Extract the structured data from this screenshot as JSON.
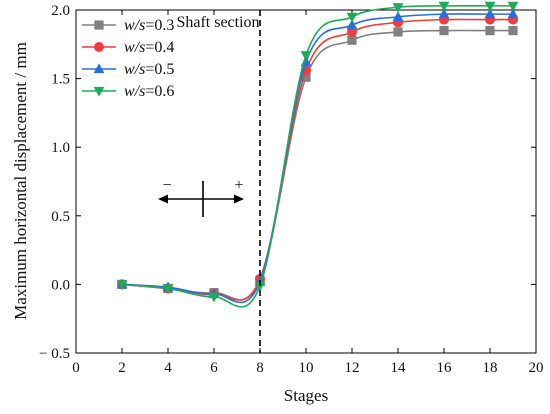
{
  "chart_data": {
    "type": "line",
    "xlabel": "Stages",
    "ylabel": "Maximum horizontal displacement / mm",
    "xlim": [
      0,
      20
    ],
    "ylim": [
      -0.5,
      2.0
    ],
    "xticks": [
      0,
      2,
      4,
      6,
      8,
      10,
      12,
      14,
      16,
      18,
      20
    ],
    "yticks": [
      -0.5,
      0.0,
      0.5,
      1.0,
      1.5,
      2.0
    ],
    "xtick_labels": [
      "0",
      "2",
      "4",
      "6",
      "8",
      "10",
      "12",
      "14",
      "16",
      "18",
      "20"
    ],
    "ytick_labels": [
      "− 0.5",
      "0.0",
      "0.5",
      "1.0",
      "1.5",
      "2.0"
    ],
    "grid": false,
    "legend_position": "top-left",
    "x": [
      2,
      4,
      6,
      8,
      10,
      12,
      14,
      16,
      18,
      19
    ],
    "series": [
      {
        "name": "w/s=0.3",
        "legend_var": "w/s",
        "legend_val": "=0.3",
        "color": "#808080",
        "marker": "square",
        "values": [
          0.0,
          -0.03,
          -0.06,
          0.03,
          1.51,
          1.78,
          1.84,
          1.85,
          1.85,
          1.85
        ]
      },
      {
        "name": "w/s=0.4",
        "legend_var": "w/s",
        "legend_val": "=0.4",
        "color": "#f03c3c",
        "marker": "circle",
        "values": [
          0.0,
          -0.03,
          -0.07,
          0.04,
          1.56,
          1.84,
          1.91,
          1.93,
          1.93,
          1.93
        ]
      },
      {
        "name": "w/s=0.5",
        "legend_var": "w/s",
        "legend_val": "=0.5",
        "color": "#2a6fdb",
        "marker": "triangle-up",
        "values": [
          0.0,
          -0.02,
          -0.07,
          0.02,
          1.62,
          1.89,
          1.95,
          1.97,
          1.97,
          1.97
        ]
      },
      {
        "name": "w/s=0.6",
        "legend_var": "w/s",
        "legend_val": "=0.6",
        "color": "#1faa59",
        "marker": "triangle-down",
        "values": [
          0.0,
          -0.03,
          -0.09,
          -0.01,
          1.67,
          1.95,
          2.02,
          2.03,
          2.03,
          2.03
        ]
      }
    ],
    "annotations": {
      "divider_x": 8,
      "shaft_label": "Shaft section",
      "minus_sign": "−",
      "plus_sign": "+"
    }
  }
}
